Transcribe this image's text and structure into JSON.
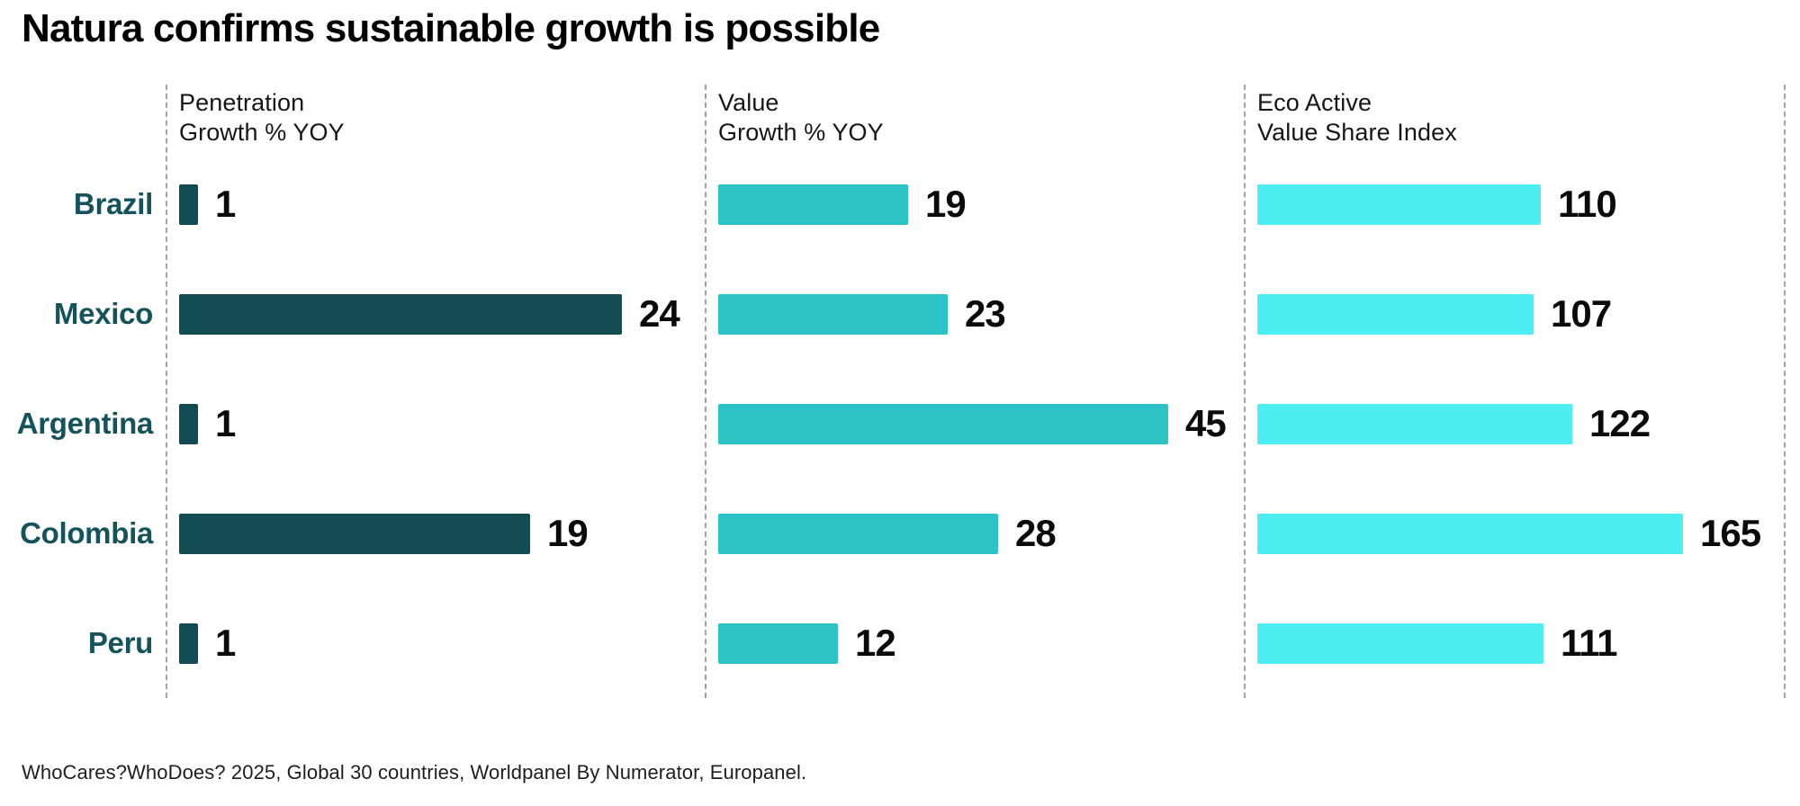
{
  "title": "Natura confirms sustainable growth is possible",
  "footer": "WhoCares?WhoDoes? 2025, Global 30 countries, Worldpanel By Numerator, Europanel.",
  "colors": {
    "country_label": "#14535C",
    "penetration_bar": "#134B52",
    "value_growth_bar": "#2CC2C6",
    "eco_active_bar": "#4DEEF2",
    "divider": "#A3A3A3",
    "number_text": "#0A0A0A"
  },
  "chart_data": {
    "type": "bar",
    "orientation": "horizontal",
    "grid": "off",
    "categories": [
      "Brazil",
      "Mexico",
      "Argentina",
      "Colombia",
      "Peru"
    ],
    "panels": [
      {
        "id": "penetration-growth",
        "header": [
          "Penetration",
          "Growth % YOY"
        ],
        "bar_color": "#134B52",
        "values": [
          1,
          24,
          1,
          19,
          1
        ],
        "xlim": [
          0,
          24
        ]
      },
      {
        "id": "value-growth",
        "header": [
          "Value",
          "Growth % YOY"
        ],
        "bar_color": "#2CC2C6",
        "values": [
          19,
          23,
          45,
          28,
          12
        ],
        "xlim": [
          0,
          45
        ]
      },
      {
        "id": "eco-active-value-share",
        "header": [
          "Eco Active",
          "Value Share Index"
        ],
        "bar_color": "#4DEEF2",
        "values": [
          110,
          107,
          122,
          165,
          111
        ],
        "xlim": [
          0,
          165
        ]
      }
    ]
  }
}
